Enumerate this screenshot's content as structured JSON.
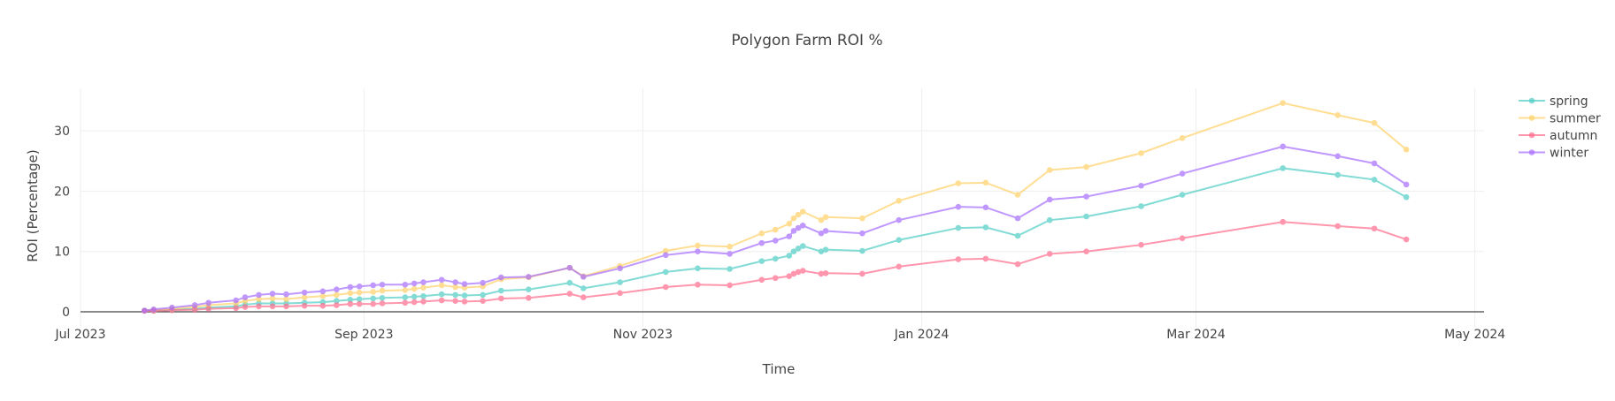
{
  "chart_data": {
    "type": "line",
    "title": "Polygon Farm ROI %",
    "xlabel": "Time",
    "ylabel": "ROI (Percentage)",
    "xlim": [
      "2023-07-01",
      "2024-05-03"
    ],
    "ylim": [
      -0.5,
      37
    ],
    "grid": true,
    "legend_position": "top-right",
    "x_ticks": [
      {
        "date": "2023-07-01",
        "label": "Jul 2023"
      },
      {
        "date": "2023-09-01",
        "label": "Sep 2023"
      },
      {
        "date": "2023-11-01",
        "label": "Nov 2023"
      },
      {
        "date": "2024-01-01",
        "label": "Jan 2024"
      },
      {
        "date": "2024-03-01",
        "label": "Mar 2024"
      },
      {
        "date": "2024-05-01",
        "label": "May 2024"
      }
    ],
    "y_ticks": [
      {
        "value": 0,
        "label": "0"
      },
      {
        "value": 10,
        "label": "10"
      },
      {
        "value": 20,
        "label": "20"
      },
      {
        "value": 30,
        "label": "30"
      }
    ],
    "x": [
      "2023-07-15",
      "2023-07-17",
      "2023-07-21",
      "2023-07-26",
      "2023-07-29",
      "2023-08-04",
      "2023-08-06",
      "2023-08-09",
      "2023-08-12",
      "2023-08-15",
      "2023-08-19",
      "2023-08-23",
      "2023-08-26",
      "2023-08-29",
      "2023-08-31",
      "2023-09-03",
      "2023-09-05",
      "2023-09-10",
      "2023-09-12",
      "2023-09-14",
      "2023-09-18",
      "2023-09-21",
      "2023-09-23",
      "2023-09-27",
      "2023-10-01",
      "2023-10-07",
      "2023-10-16",
      "2023-10-19",
      "2023-10-27",
      "2023-11-06",
      "2023-11-13",
      "2023-11-20",
      "2023-11-27",
      "2023-11-30",
      "2023-12-03",
      "2023-12-04",
      "2023-12-05",
      "2023-12-06",
      "2023-12-10",
      "2023-12-11",
      "2023-12-19",
      "2023-12-27",
      "2024-01-09",
      "2024-01-15",
      "2024-01-22",
      "2024-01-29",
      "2024-02-06",
      "2024-02-18",
      "2024-02-27",
      "2024-03-20",
      "2024-04-01",
      "2024-04-09",
      "2024-04-16"
    ],
    "series": [
      {
        "name": "spring",
        "color": "#4ecdc4",
        "values": [
          0.2,
          0.2,
          0.35,
          0.5,
          0.7,
          0.9,
          1.2,
          1.4,
          1.4,
          1.4,
          1.5,
          1.6,
          1.8,
          2.0,
          2.1,
          2.2,
          2.3,
          2.4,
          2.5,
          2.6,
          2.9,
          2.8,
          2.7,
          2.8,
          3.5,
          3.7,
          4.8,
          3.9,
          4.9,
          6.6,
          7.2,
          7.1,
          8.4,
          8.8,
          9.3,
          10.0,
          10.5,
          10.9,
          10.0,
          10.3,
          10.1,
          11.9,
          13.9,
          14.0,
          12.6,
          15.2,
          15.8,
          17.5,
          19.4,
          23.8,
          22.7,
          21.9,
          19.0
        ]
      },
      {
        "name": "summer",
        "color": "#ffd166",
        "values": [
          0.2,
          0.3,
          0.5,
          0.8,
          1.1,
          1.4,
          1.8,
          2.1,
          2.2,
          2.1,
          2.4,
          2.6,
          2.8,
          3.1,
          3.2,
          3.3,
          3.5,
          3.6,
          3.8,
          4.0,
          4.4,
          4.1,
          4.0,
          4.2,
          5.4,
          5.7,
          7.3,
          5.9,
          7.6,
          10.1,
          11.0,
          10.8,
          13.0,
          13.6,
          14.6,
          15.5,
          16.1,
          16.6,
          15.2,
          15.7,
          15.5,
          18.4,
          21.3,
          21.4,
          19.4,
          23.5,
          24.0,
          26.3,
          28.8,
          34.6,
          32.6,
          31.3,
          26.9
        ]
      },
      {
        "name": "autumn",
        "color": "#ff6b8b",
        "values": [
          0.15,
          0.15,
          0.25,
          0.35,
          0.5,
          0.6,
          0.8,
          0.9,
          0.9,
          0.9,
          1.0,
          1.0,
          1.1,
          1.3,
          1.3,
          1.3,
          1.4,
          1.5,
          1.6,
          1.7,
          1.9,
          1.8,
          1.7,
          1.8,
          2.2,
          2.3,
          3.0,
          2.4,
          3.1,
          4.1,
          4.5,
          4.4,
          5.3,
          5.6,
          5.9,
          6.3,
          6.6,
          6.8,
          6.3,
          6.4,
          6.3,
          7.5,
          8.7,
          8.8,
          7.9,
          9.6,
          10.0,
          11.1,
          12.2,
          14.9,
          14.2,
          13.8,
          12.0
        ]
      },
      {
        "name": "winter",
        "color": "#a66cff",
        "values": [
          0.2,
          0.4,
          0.7,
          1.1,
          1.5,
          1.9,
          2.4,
          2.8,
          3.0,
          2.9,
          3.2,
          3.4,
          3.7,
          4.1,
          4.2,
          4.4,
          4.5,
          4.5,
          4.7,
          4.9,
          5.3,
          4.9,
          4.6,
          4.8,
          5.7,
          5.8,
          7.3,
          5.8,
          7.2,
          9.4,
          10.0,
          9.6,
          11.4,
          11.8,
          12.5,
          13.4,
          13.9,
          14.3,
          13.0,
          13.4,
          13.0,
          15.2,
          17.4,
          17.3,
          15.5,
          18.6,
          19.1,
          20.9,
          22.9,
          27.4,
          25.8,
          24.6,
          21.1
        ]
      }
    ]
  }
}
